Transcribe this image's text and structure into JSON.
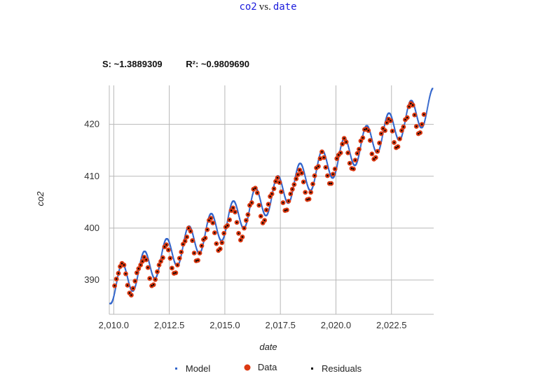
{
  "header": {
    "y_var": "co2",
    "vs": "vs.",
    "x_var": "date"
  },
  "stats": {
    "s_label": "S: ~1.3889309",
    "r2_label": "R²: ~0.9809690"
  },
  "legend": {
    "model_label": "Model",
    "data_label": "Data",
    "residuals_label": "Residuals"
  },
  "colors": {
    "model": "#3366cc",
    "data": "#dc3912",
    "residuals": "#000000",
    "grid": "#b8b8b8"
  },
  "chart_data": {
    "type": "scatter",
    "xlabel": "date",
    "ylabel": "co2",
    "xlim": [
      2009.8,
      2024.4
    ],
    "ylim": [
      383.4,
      427.5
    ],
    "xticks": [
      2010.0,
      2012.5,
      2015.0,
      2017.5,
      2020.0,
      2022.5
    ],
    "xtick_labels": [
      "2,010.0",
      "2,012.5",
      "2,015.0",
      "2,017.5",
      "2,020.0",
      "2,022.5"
    ],
    "yticks": [
      390,
      400,
      410,
      420
    ],
    "ytick_labels": [
      "390",
      "400",
      "410",
      "420"
    ],
    "grid": true,
    "legend_position": "bottom",
    "model": {
      "x_range": [
        2009.83,
        2024.35
      ],
      "baseline_at_2010": 389.0,
      "trend_per_year": 2.42,
      "seasonal_amplitude": 3.2,
      "seasonal_peak_phase": 0.37
    },
    "series": [
      {
        "name": "Data",
        "x": [
          2010.04,
          2010.12,
          2010.21,
          2010.29,
          2010.37,
          2010.46,
          2010.54,
          2010.62,
          2010.71,
          2010.79,
          2010.87,
          2010.96,
          2011.04,
          2011.12,
          2011.21,
          2011.29,
          2011.37,
          2011.46,
          2011.54,
          2011.62,
          2011.71,
          2011.79,
          2011.87,
          2011.96,
          2012.04,
          2012.12,
          2012.21,
          2012.29,
          2012.37,
          2012.46,
          2012.54,
          2012.62,
          2012.71,
          2012.79,
          2012.87,
          2012.96,
          2013.04,
          2013.12,
          2013.21,
          2013.29,
          2013.37,
          2013.46,
          2013.54,
          2013.62,
          2013.71,
          2013.79,
          2013.87,
          2013.96,
          2014.04,
          2014.12,
          2014.21,
          2014.29,
          2014.37,
          2014.46,
          2014.54,
          2014.62,
          2014.71,
          2014.79,
          2014.87,
          2014.96,
          2015.04,
          2015.12,
          2015.21,
          2015.29,
          2015.37,
          2015.46,
          2015.54,
          2015.62,
          2015.71,
          2015.79,
          2015.87,
          2015.96,
          2016.04,
          2016.12,
          2016.21,
          2016.29,
          2016.37,
          2016.46,
          2016.54,
          2016.62,
          2016.71,
          2016.79,
          2016.87,
          2016.96,
          2017.04,
          2017.12,
          2017.21,
          2017.29,
          2017.37,
          2017.46,
          2017.54,
          2017.62,
          2017.71,
          2017.79,
          2017.87,
          2017.96,
          2018.04,
          2018.12,
          2018.21,
          2018.29,
          2018.37,
          2018.46,
          2018.54,
          2018.62,
          2018.71,
          2018.79,
          2018.87,
          2018.96,
          2019.04,
          2019.12,
          2019.21,
          2019.29,
          2019.37,
          2019.46,
          2019.54,
          2019.62,
          2019.71,
          2019.79,
          2019.87,
          2019.96,
          2020.04,
          2020.12,
          2020.21,
          2020.29,
          2020.37,
          2020.46,
          2020.54,
          2020.62,
          2020.71,
          2020.79,
          2020.87,
          2020.96,
          2021.04,
          2021.12,
          2021.21,
          2021.29,
          2021.37,
          2021.46,
          2021.54,
          2021.62,
          2021.71,
          2021.79,
          2021.87,
          2021.96,
          2022.04,
          2022.12,
          2022.21,
          2022.29,
          2022.37,
          2022.46,
          2022.54,
          2022.62,
          2022.71,
          2022.79,
          2022.87,
          2022.96,
          2023.04,
          2023.12,
          2023.21,
          2023.29,
          2023.37,
          2023.46,
          2023.54,
          2023.62,
          2023.71,
          2023.79,
          2023.87,
          2023.96
        ],
        "y": [
          388.9,
          390.2,
          391.3,
          392.6,
          393.2,
          392.9,
          391.2,
          389.0,
          387.5,
          387.1,
          388.4,
          389.8,
          391.4,
          392.2,
          392.9,
          393.6,
          394.4,
          393.9,
          392.4,
          390.3,
          388.9,
          389.1,
          390.1,
          391.6,
          392.9,
          393.6,
          394.3,
          396.4,
          396.8,
          395.8,
          394.2,
          392.3,
          391.3,
          391.4,
          392.9,
          394.2,
          395.4,
          396.9,
          397.5,
          398.3,
          400.0,
          399.4,
          397.6,
          395.2,
          393.7,
          393.8,
          395.2,
          396.6,
          397.8,
          398.1,
          399.7,
          401.5,
          401.9,
          401.0,
          399.1,
          397.0,
          395.7,
          396.0,
          397.2,
          399.0,
          400.2,
          400.5,
          401.6,
          403.4,
          403.9,
          403.1,
          401.1,
          399.0,
          397.7,
          398.3,
          400.0,
          401.5,
          402.6,
          404.4,
          404.9,
          407.5,
          407.7,
          406.8,
          404.4,
          402.3,
          401.0,
          401.5,
          403.5,
          404.6,
          406.1,
          406.6,
          407.6,
          409.0,
          409.7,
          408.8,
          407.0,
          404.9,
          403.4,
          403.5,
          405.2,
          406.6,
          407.5,
          408.4,
          409.5,
          410.3,
          411.2,
          410.6,
          408.9,
          406.9,
          405.5,
          405.6,
          406.9,
          408.5,
          410.1,
          411.6,
          411.9,
          413.4,
          414.7,
          413.6,
          411.7,
          410.1,
          408.6,
          408.6,
          410.4,
          411.4,
          413.4,
          414.1,
          414.5,
          416.2,
          417.3,
          416.6,
          414.5,
          412.5,
          411.5,
          411.4,
          413.1,
          414.4,
          415.2,
          416.8,
          417.4,
          419.0,
          419.1,
          418.8,
          416.9,
          414.3,
          413.3,
          413.6,
          414.8,
          416.4,
          418.2,
          419.2,
          418.8,
          420.3,
          421.0,
          420.7,
          418.7,
          416.5,
          415.5,
          415.7,
          417.2,
          418.8,
          419.5,
          420.9,
          421.3,
          423.4,
          424.0,
          423.7,
          421.8,
          419.6,
          418.2,
          418.4,
          420.0,
          421.9
        ]
      }
    ]
  }
}
